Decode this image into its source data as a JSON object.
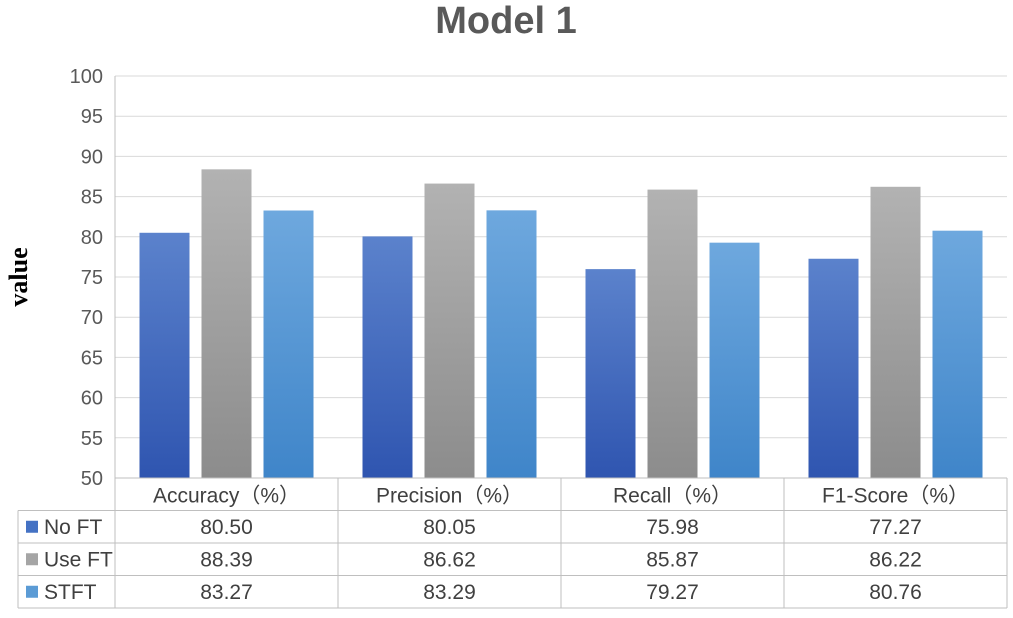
{
  "chart_data": {
    "type": "bar",
    "title": "Model 1",
    "ylabel": "value",
    "xlabel": "",
    "ylim": [
      50,
      100
    ],
    "yticks": [
      50,
      55,
      60,
      65,
      70,
      75,
      80,
      85,
      90,
      95,
      100
    ],
    "grid": true,
    "legend": "table-left",
    "categories": [
      "Accuracy（%）",
      "Precision（%）",
      "Recall（%）",
      "F1-Score（%）"
    ],
    "series": [
      {
        "name": "No FT",
        "values": [
          80.5,
          80.05,
          75.98,
          77.27
        ],
        "labels": [
          "80.50",
          "80.05",
          "75.98",
          "77.27"
        ],
        "color": "#4472c4",
        "color_top": "#5b82cc",
        "color_bottom": "#2f55b0"
      },
      {
        "name": "Use FT",
        "values": [
          88.39,
          86.62,
          85.87,
          86.22
        ],
        "labels": [
          "88.39",
          "86.62",
          "85.87",
          "86.22"
        ],
        "color": "#a5a5a5",
        "color_top": "#b2b2b2",
        "color_bottom": "#8c8c8c"
      },
      {
        "name": "STFT",
        "values": [
          83.27,
          83.29,
          79.27,
          80.76
        ],
        "labels": [
          "83.27",
          "83.29",
          "79.27",
          "80.76"
        ],
        "color": "#5b9bd5",
        "color_top": "#6ea8de",
        "color_bottom": "#3f85c9"
      }
    ]
  }
}
